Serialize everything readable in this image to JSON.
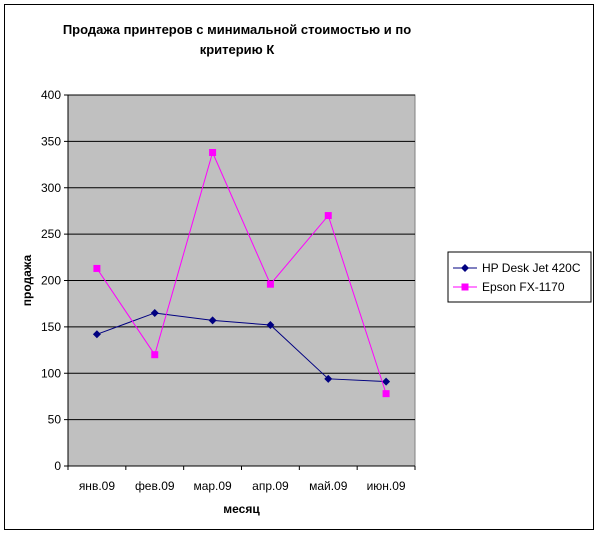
{
  "chart_data": {
    "type": "line",
    "title": "Продажа принтеров с минимальной стоимостью и по критерию К",
    "title_lines": [
      "Продажа принтеров с минимальной стоимостью и по",
      "критерию К"
    ],
    "xlabel": "месяц",
    "ylabel": "продажа",
    "categories": [
      "янв.09",
      "фев.09",
      "мар.09",
      "апр.09",
      "май.09",
      "июн.09"
    ],
    "ylim": [
      0,
      400
    ],
    "yticks": [
      0,
      50,
      100,
      150,
      200,
      250,
      300,
      350,
      400
    ],
    "grid": true,
    "plot_background": "#c0c0c0",
    "legend_position": "right",
    "series": [
      {
        "name": "HP Desk Jet 420C",
        "color": "#000080",
        "marker": "diamond",
        "values": [
          142,
          165,
          157,
          152,
          94,
          91
        ]
      },
      {
        "name": "Epson FX-1170",
        "color": "#ff00ff",
        "marker": "square",
        "values": [
          213,
          120,
          338,
          196,
          270,
          78
        ]
      }
    ]
  }
}
